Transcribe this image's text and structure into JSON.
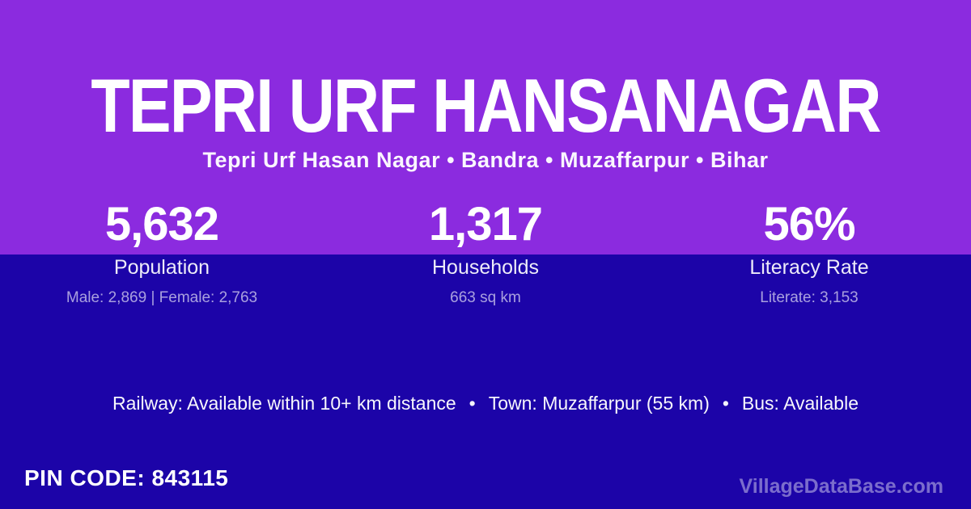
{
  "page": {
    "title": "TEPRI URF HANSANAGAR",
    "subtitle": "Tepri Urf Hasan Nagar • Bandra • Muzaffarpur • Bihar"
  },
  "stats": [
    {
      "value": "5,632",
      "label": "Population",
      "detail": "Male: 2,869 | Female: 2,763"
    },
    {
      "value": "1,317",
      "label": "Households",
      "detail": "663 sq km"
    },
    {
      "value": "56%",
      "label": "Literacy Rate",
      "detail": "Literate: 3,153"
    }
  ],
  "transport": {
    "items": [
      "Railway: Available within 10+ km distance",
      "Town: Muzaffarpur (55 km)",
      "Bus: Available"
    ],
    "separator": "•"
  },
  "pin": {
    "text": "PIN CODE: 843115"
  },
  "watermark": "VillageDataBase.com",
  "colors": {
    "top_bg": "#8B2BDF",
    "bottom_bg": "#1C04A8",
    "text": "#FFFFFF"
  }
}
